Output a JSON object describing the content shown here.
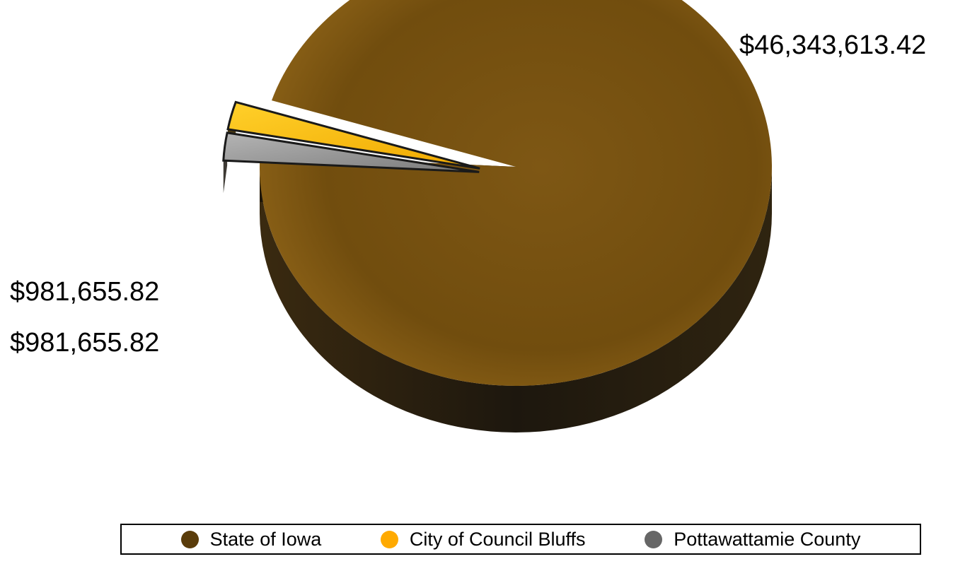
{
  "chart_data": {
    "type": "pie",
    "style": "3d-exploded",
    "title": "",
    "legend_position": "bottom",
    "slices": [
      {
        "name": "State of Iowa",
        "value": 46343613.42,
        "label": "$46,343,613.42",
        "color": "#5a3c0a"
      },
      {
        "name": "City of Council Bluffs",
        "value": 981655.82,
        "label": "$981,655.82",
        "color": "#ffaa00"
      },
      {
        "name": "Pottawattamie County",
        "value": 981655.82,
        "label": "$981,655.82",
        "color": "#666666"
      }
    ]
  },
  "legend": {
    "items": [
      {
        "label": "State of Iowa",
        "color": "#5a3c0a"
      },
      {
        "label": "City of Council Bluffs",
        "color": "#ffaa00"
      },
      {
        "label": "Pottawattamie County",
        "color": "#666666"
      }
    ]
  }
}
